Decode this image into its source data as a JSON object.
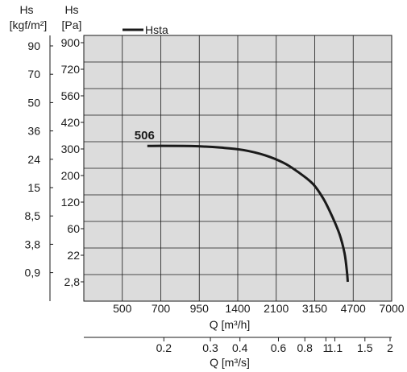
{
  "chart_data": {
    "type": "line",
    "y_headers": {
      "left_unit_symbol": "Hs",
      "left_unit": "[kgf/m²]",
      "inner_unit_symbol": "Hs",
      "inner_unit": "[Pa]"
    },
    "y_ticks_pa": [
      "900",
      "720",
      "560",
      "420",
      "300",
      "200",
      "120",
      "60",
      "22",
      "2,8"
    ],
    "y_ticks_kgf": [
      "90",
      "70",
      "50",
      "36",
      "24",
      "15",
      "8,5",
      "3,8",
      "0,9"
    ],
    "x_ticks_m3h": [
      "500",
      "700",
      "950",
      "1400",
      "2100",
      "3150",
      "4700",
      "7000"
    ],
    "x_ticks_m3s": [
      "0.2",
      "0.3",
      "0.4",
      "0.6",
      "0.8",
      "1",
      "1.1",
      "1.5",
      "2"
    ],
    "xlabel": "Q [m³/h]",
    "xlabel2": "Q [m³/s]",
    "legend": [
      {
        "name": "Hsta",
        "color": "#1a1a1a"
      }
    ],
    "series": [
      {
        "name": "Hsta",
        "curve_label": "506",
        "color": "#1a1a1a",
        "points": [
          {
            "q_m3h": 630,
            "p_pa": 314
          },
          {
            "q_m3h": 900,
            "p_pa": 313
          },
          {
            "q_m3h": 1200,
            "p_pa": 306
          },
          {
            "q_m3h": 1500,
            "p_pa": 296
          },
          {
            "q_m3h": 1900,
            "p_pa": 276
          },
          {
            "q_m3h": 2300,
            "p_pa": 248
          },
          {
            "q_m3h": 2700,
            "p_pa": 213
          },
          {
            "q_m3h": 3100,
            "p_pa": 175
          },
          {
            "q_m3h": 3500,
            "p_pa": 130
          },
          {
            "q_m3h": 3850,
            "p_pa": 88
          },
          {
            "q_m3h": 4150,
            "p_pa": 52
          },
          {
            "q_m3h": 4350,
            "p_pa": 25
          },
          {
            "q_m3h": 4450,
            "p_pa": 10
          },
          {
            "q_m3h": 4480,
            "p_pa": 2.8
          }
        ]
      }
    ],
    "grid": true
  }
}
